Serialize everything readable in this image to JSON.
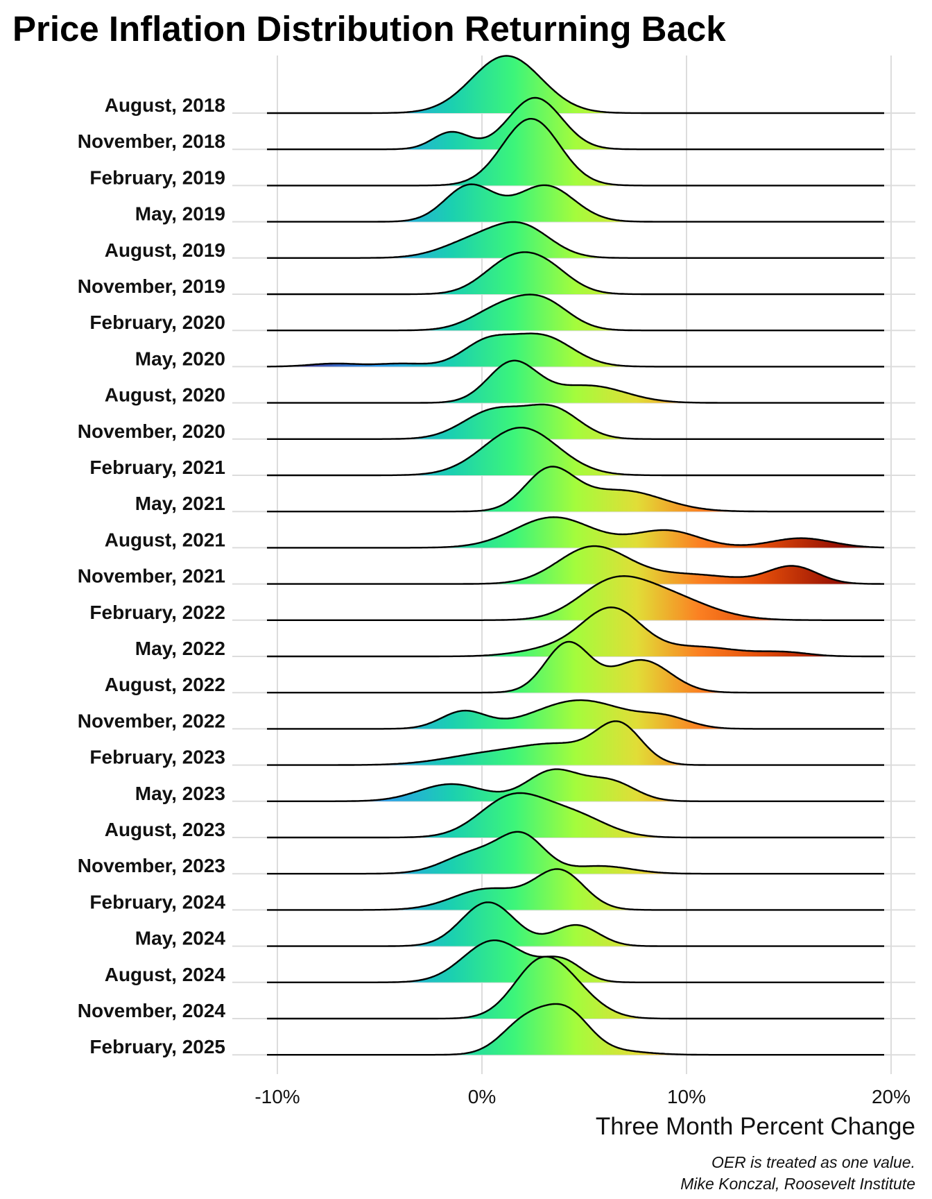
{
  "chart_data": {
    "type": "ridgeline",
    "title": "Price Inflation Distribution Returning Back",
    "xlabel": "Three Month Percent Change",
    "ylabel": "",
    "xlim": [
      -10,
      20
    ],
    "x_ticks": [
      -10,
      0,
      10,
      20
    ],
    "x_tick_labels": [
      "-10%",
      "0%",
      "10%",
      "20%"
    ],
    "grid": true,
    "fill": "gradient colored by x value (blue → green → yellow → red)",
    "captions": [
      "OER is treated as one value.",
      "Mike Konczal, Roosevelt Institute"
    ],
    "series": [
      {
        "name": "August, 2018",
        "peaks": [
          [
            1.2,
            1.5,
            1.7
          ]
        ]
      },
      {
        "name": "November, 2018",
        "peaks": [
          [
            -1.5,
            0.45,
            0.9
          ],
          [
            2.6,
            1.35,
            1.3
          ]
        ]
      },
      {
        "name": "February, 2019",
        "peaks": [
          [
            2.4,
            1.75,
            1.4
          ]
        ]
      },
      {
        "name": "May, 2019",
        "peaks": [
          [
            -0.6,
            0.95,
            1.2
          ],
          [
            3.1,
            0.95,
            1.4
          ]
        ]
      },
      {
        "name": "August, 2019",
        "peaks": [
          [
            -0.3,
            0.45,
            1.6
          ],
          [
            2.0,
            0.75,
            1.4
          ]
        ]
      },
      {
        "name": "November, 2019",
        "peaks": [
          [
            1.2,
            0.7,
            1.3
          ],
          [
            3.0,
            0.7,
            1.3
          ]
        ]
      },
      {
        "name": "February, 2020",
        "peaks": [
          [
            0.9,
            0.55,
            1.4
          ],
          [
            3.0,
            0.7,
            1.3
          ]
        ]
      },
      {
        "name": "May, 2020",
        "peaks": [
          [
            -7.2,
            0.08,
            1.2
          ],
          [
            -3.9,
            0.08,
            1.2
          ],
          [
            0.2,
            0.6,
            1.2
          ],
          [
            2.9,
            0.8,
            1.5
          ]
        ]
      },
      {
        "name": "August, 2020",
        "peaks": [
          [
            1.5,
            1.05,
            1.2
          ],
          [
            5.2,
            0.45,
            1.8
          ]
        ]
      },
      {
        "name": "November, 2020",
        "peaks": [
          [
            0.6,
            0.75,
            1.5
          ],
          [
            3.5,
            0.75,
            1.3
          ]
        ]
      },
      {
        "name": "February, 2021",
        "peaks": [
          [
            1.9,
            1.25,
            1.8
          ]
        ]
      },
      {
        "name": "May, 2021",
        "peaks": [
          [
            3.3,
            1.05,
            1.2
          ],
          [
            6.8,
            0.55,
            2.0
          ]
        ]
      },
      {
        "name": "August, 2021",
        "peaks": [
          [
            3.5,
            0.8,
            1.9
          ],
          [
            9.0,
            0.45,
            1.6
          ],
          [
            15.6,
            0.25,
            1.5
          ]
        ]
      },
      {
        "name": "November, 2021",
        "peaks": [
          [
            5.4,
            0.95,
            1.7
          ],
          [
            10.0,
            0.25,
            2.4
          ],
          [
            15.2,
            0.45,
            1.2
          ]
        ]
      },
      {
        "name": "February, 2022",
        "peaks": [
          [
            6.2,
            0.7,
            1.6
          ],
          [
            8.6,
            0.7,
            2.2
          ]
        ]
      },
      {
        "name": "May, 2022",
        "peaks": [
          [
            6.4,
            1.15,
            1.4
          ],
          [
            4.0,
            0.25,
            1.8
          ],
          [
            10.5,
            0.25,
            2.0
          ],
          [
            14.8,
            0.1,
            1.2
          ]
        ]
      },
      {
        "name": "August, 2022",
        "peaks": [
          [
            4.2,
            1.3,
            1.1
          ],
          [
            7.8,
            0.85,
            1.4
          ]
        ]
      },
      {
        "name": "November, 2022",
        "peaks": [
          [
            -0.9,
            0.45,
            1.1
          ],
          [
            4.8,
            0.75,
            2.2
          ],
          [
            9.0,
            0.25,
            1.2
          ]
        ]
      },
      {
        "name": "February, 2023",
        "peaks": [
          [
            0.5,
            0.3,
            2.2
          ],
          [
            3.9,
            0.45,
            1.8
          ],
          [
            6.7,
            1.0,
            1.1
          ]
        ]
      },
      {
        "name": "May, 2023",
        "peaks": [
          [
            -1.5,
            0.45,
            1.6
          ],
          [
            3.5,
            0.8,
            1.3
          ],
          [
            6.3,
            0.5,
            1.2
          ]
        ]
      },
      {
        "name": "August, 2023",
        "peaks": [
          [
            1.5,
            1.05,
            1.6
          ],
          [
            4.5,
            0.55,
            1.6
          ]
        ]
      },
      {
        "name": "November, 2023",
        "peaks": [
          [
            -0.3,
            0.55,
            1.5
          ],
          [
            2.0,
            0.9,
            1.1
          ],
          [
            5.8,
            0.2,
            1.5
          ]
        ]
      },
      {
        "name": "February, 2024",
        "peaks": [
          [
            0.3,
            0.55,
            1.7
          ],
          [
            3.8,
            1.0,
            1.2
          ]
        ]
      },
      {
        "name": "May, 2024",
        "peaks": [
          [
            0.3,
            1.15,
            1.3
          ],
          [
            4.6,
            0.55,
            1.1
          ]
        ]
      },
      {
        "name": "August, 2024",
        "peaks": [
          [
            0.6,
            1.1,
            1.5
          ],
          [
            3.9,
            0.55,
            1.0
          ]
        ]
      },
      {
        "name": "November, 2024",
        "peaks": [
          [
            2.8,
            1.35,
            1.3
          ],
          [
            4.5,
            0.55,
            1.3
          ]
        ]
      },
      {
        "name": "February, 2025",
        "peaks": [
          [
            2.2,
            0.9,
            1.2
          ],
          [
            4.2,
            1.0,
            1.1
          ],
          [
            6.5,
            0.1,
            1.5
          ]
        ]
      }
    ]
  }
}
